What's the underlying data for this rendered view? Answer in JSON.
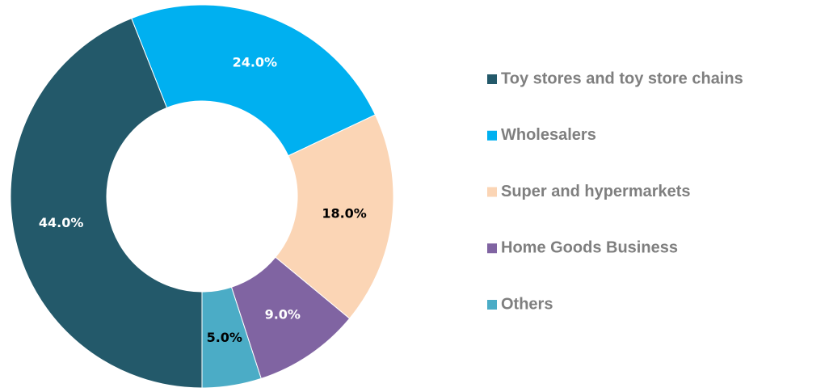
{
  "chart_data": {
    "type": "donut",
    "categories": [
      "Toy stores and toy store chains",
      "Wholesalers",
      "Super and hypermarkets",
      "Home Goods Business",
      "Others"
    ],
    "values": [
      44,
      24,
      18,
      9,
      5
    ],
    "value_labels": [
      "44.0%",
      "24.0%",
      "18.0%",
      "9.0%",
      "5.0%"
    ],
    "colors": [
      "#23596a",
      "#00b0f0",
      "#fbd5b5",
      "#8064a2",
      "#4bacc6"
    ],
    "label_colors": [
      "#ffffff",
      "#ffffff",
      "#000000",
      "#ffffff",
      "#000000"
    ],
    "legend": "right"
  }
}
